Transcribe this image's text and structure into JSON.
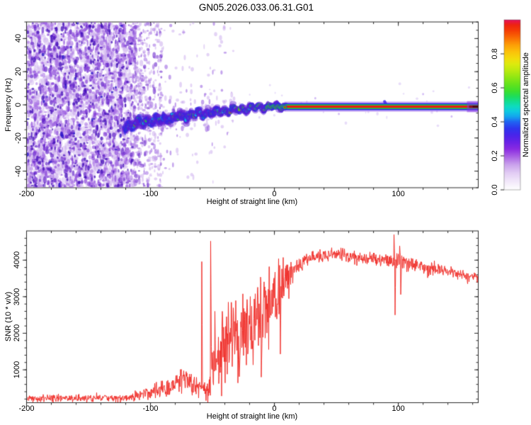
{
  "title": "GN05.2026.033.06.31.G01",
  "colorbar": {
    "label": "Normalized spectral amplitude",
    "tick_values": [
      0.0,
      0.2,
      0.4,
      0.6,
      0.8
    ],
    "tick_labels": [
      "0.0",
      "0.2",
      "0.4",
      "0.6",
      "0.8"
    ],
    "range": [
      0.0,
      1.0
    ],
    "stops": [
      {
        "v": 0.0,
        "c": "#ffffff"
      },
      {
        "v": 0.05,
        "c": "#f2e8fa"
      },
      {
        "v": 0.1,
        "c": "#e2ccf4"
      },
      {
        "v": 0.15,
        "c": "#c9a0ec"
      },
      {
        "v": 0.2,
        "c": "#a75ce4"
      },
      {
        "v": 0.24,
        "c": "#8a2be2"
      },
      {
        "v": 0.28,
        "c": "#6a22e6"
      },
      {
        "v": 0.32,
        "c": "#4a24ea"
      },
      {
        "v": 0.36,
        "c": "#2f35ee"
      },
      {
        "v": 0.4,
        "c": "#2064f2"
      },
      {
        "v": 0.43,
        "c": "#14a4ee"
      },
      {
        "v": 0.46,
        "c": "#0fc8e2"
      },
      {
        "v": 0.49,
        "c": "#0edcc0"
      },
      {
        "v": 0.52,
        "c": "#12dd90"
      },
      {
        "v": 0.55,
        "c": "#1edd5a"
      },
      {
        "v": 0.58,
        "c": "#3cdf2e"
      },
      {
        "v": 0.62,
        "c": "#63e31c"
      },
      {
        "v": 0.66,
        "c": "#8ee714"
      },
      {
        "v": 0.7,
        "c": "#b9ea10"
      },
      {
        "v": 0.74,
        "c": "#ddea0e"
      },
      {
        "v": 0.77,
        "c": "#f2dd0c"
      },
      {
        "v": 0.81,
        "c": "#fbc30a"
      },
      {
        "v": 0.85,
        "c": "#fda107"
      },
      {
        "v": 0.88,
        "c": "#fb7d05"
      },
      {
        "v": 0.91,
        "c": "#f85a04"
      },
      {
        "v": 0.94,
        "c": "#f43a06"
      },
      {
        "v": 0.97,
        "c": "#ee2410"
      },
      {
        "v": 0.985,
        "c": "#e91a37"
      },
      {
        "v": 1.0,
        "c": "#e5125f"
      }
    ]
  },
  "chart_data": [
    {
      "type": "heatmap",
      "name": "doppler-spectrogram",
      "xlabel": "Height of straight line (km)",
      "ylabel": "Frequency (Hz)",
      "xlim": [
        -200,
        164.5
      ],
      "ylim": [
        -50,
        50
      ],
      "xticks": [
        -200,
        -100,
        0,
        100
      ],
      "xtick_labels": [
        "-200",
        "-100",
        "0",
        "100"
      ],
      "x_minor_step": 20,
      "yticks": [
        -40,
        -20,
        0,
        20,
        40
      ],
      "ytick_labels": [
        "-40",
        "-20",
        "0",
        "20",
        "40"
      ],
      "y_minor_step": 5,
      "noise": {
        "dense_km": [
          -200,
          -113
        ],
        "fade_km": [
          -113,
          -91
        ],
        "sparse_km": [
          -91,
          -32
        ],
        "speck_km": [
          -32,
          160
        ]
      },
      "band_path_km_hz": [
        [
          -121,
          -13.5
        ],
        [
          -112,
          -11
        ],
        [
          -104,
          -10
        ],
        [
          -97,
          -9.3
        ],
        [
          -90,
          -8.6
        ],
        [
          -83,
          -7.8
        ],
        [
          -76,
          -7
        ],
        [
          -70,
          -6.3
        ],
        [
          -64,
          -5.8
        ],
        [
          -58,
          -5.4
        ],
        [
          -52,
          -4.8
        ],
        [
          -46,
          -4.2
        ],
        [
          -40,
          -3.6
        ],
        [
          -34,
          -3
        ],
        [
          -28,
          -2.6
        ],
        [
          -22,
          -2.2
        ],
        [
          -16,
          -1.8
        ],
        [
          -10,
          -1.4
        ],
        [
          -4,
          -1.1
        ],
        [
          2,
          -1
        ],
        [
          9,
          -0.9
        ]
      ],
      "band_sigma_km_hz": [
        [
          -121,
          4.2
        ],
        [
          -90,
          3.6
        ],
        [
          -60,
          2.8
        ],
        [
          -35,
          2.0
        ],
        [
          -15,
          1.4
        ],
        [
          9,
          1.0
        ]
      ],
      "red_core_start_km": -55,
      "stripe": {
        "start_km": 8,
        "end_km": 164.5,
        "center_hz": -1.1,
        "dark_end_km": [
          140,
          164.5
        ]
      },
      "specks_km_hz": [
        [
          88.9,
          1.9
        ],
        [
          89.6,
          1.2
        ],
        [
          52,
          -5.5
        ],
        [
          33,
          4
        ],
        [
          120,
          6.5
        ],
        [
          143,
          -7
        ]
      ],
      "palette": {
        "lavender": "#d5bdf0",
        "violet": "#8a2be2",
        "blue": "#2d28e6",
        "cyan": "#00cde1",
        "green": "#1ed838",
        "yellow": "#e0ea0e",
        "red": "#e91a10",
        "dark_red": "#6f0d18"
      }
    },
    {
      "type": "line",
      "name": "snr-profile",
      "xlabel": "Height of straight line (km)",
      "ylabel": "SNR (10 * v/v)",
      "xlim": [
        -200,
        164.5
      ],
      "ylim": [
        100,
        4800
      ],
      "xticks": [
        -200,
        -100,
        0,
        100
      ],
      "xtick_labels": [
        "-200",
        "-100",
        "0",
        "100"
      ],
      "x_minor_step": 20,
      "yticks": [
        1000,
        2000,
        3000,
        4000
      ],
      "ytick_labels": [
        "1000",
        "2000",
        "3000",
        "4000"
      ],
      "y_minor_step": 200,
      "series_color": "#ef2b26",
      "profile_km_mean_jitter": [
        [
          -200,
          215,
          110
        ],
        [
          -160,
          215,
          110
        ],
        [
          -130,
          225,
          115
        ],
        [
          -115,
          250,
          130
        ],
        [
          -105,
          330,
          190
        ],
        [
          -95,
          420,
          260
        ],
        [
          -86,
          520,
          300
        ],
        [
          -79,
          640,
          360
        ],
        [
          -73,
          780,
          430
        ],
        [
          -68,
          720,
          400
        ],
        [
          -63,
          560,
          300
        ],
        [
          -58,
          480,
          280
        ],
        [
          -53,
          620,
          500
        ],
        [
          -49,
          1150,
          900
        ],
        [
          -44,
          1500,
          1150
        ],
        [
          -40,
          1750,
          1250
        ],
        [
          -36,
          1950,
          1250
        ],
        [
          -32,
          2150,
          1300
        ],
        [
          -29,
          1900,
          1250
        ],
        [
          -26,
          2050,
          1200
        ],
        [
          -23,
          2200,
          1150
        ],
        [
          -20,
          2150,
          1200
        ],
        [
          -17,
          2400,
          1100
        ],
        [
          -14,
          2550,
          1050
        ],
        [
          -11,
          2300,
          1200
        ],
        [
          -8,
          2650,
          1000
        ],
        [
          -5,
          2850,
          950
        ],
        [
          -2,
          2950,
          900
        ],
        [
          1,
          3050,
          900
        ],
        [
          4,
          3000,
          1000
        ],
        [
          7,
          3300,
          750
        ],
        [
          10,
          3500,
          550
        ],
        [
          13,
          3650,
          420
        ],
        [
          16,
          3800,
          330
        ],
        [
          20,
          3920,
          280
        ],
        [
          25,
          4020,
          250
        ],
        [
          30,
          4080,
          230
        ],
        [
          35,
          4110,
          230
        ],
        [
          40,
          4140,
          230
        ],
        [
          45,
          4160,
          220
        ],
        [
          50,
          4150,
          210
        ],
        [
          55,
          4130,
          210
        ],
        [
          60,
          4100,
          220
        ],
        [
          65,
          4080,
          220
        ],
        [
          70,
          4060,
          220
        ],
        [
          75,
          4060,
          220
        ],
        [
          80,
          4040,
          230
        ],
        [
          85,
          4020,
          230
        ],
        [
          90,
          4000,
          230
        ],
        [
          94,
          3980,
          250
        ],
        [
          96,
          3990,
          300
        ],
        [
          98,
          3970,
          350
        ],
        [
          100,
          3990,
          300
        ],
        [
          103,
          3940,
          320
        ],
        [
          106,
          3920,
          260
        ],
        [
          110,
          3890,
          240
        ],
        [
          115,
          3850,
          230
        ],
        [
          120,
          3810,
          220
        ],
        [
          126,
          3770,
          220
        ],
        [
          132,
          3730,
          210
        ],
        [
          138,
          3690,
          210
        ],
        [
          144,
          3650,
          200
        ],
        [
          150,
          3600,
          200
        ],
        [
          156,
          3560,
          200
        ],
        [
          164,
          3520,
          200
        ]
      ],
      "spikes_km_value": [
        [
          -58.7,
          3960
        ],
        [
          -51.6,
          4520
        ],
        [
          -47.9,
          2600
        ],
        [
          -29.5,
          640
        ],
        [
          -10.5,
          800
        ],
        [
          4.8,
          1430
        ],
        [
          96.6,
          4700
        ],
        [
          97.4,
          2500
        ],
        [
          101,
          4390
        ],
        [
          102,
          3060
        ]
      ]
    }
  ]
}
